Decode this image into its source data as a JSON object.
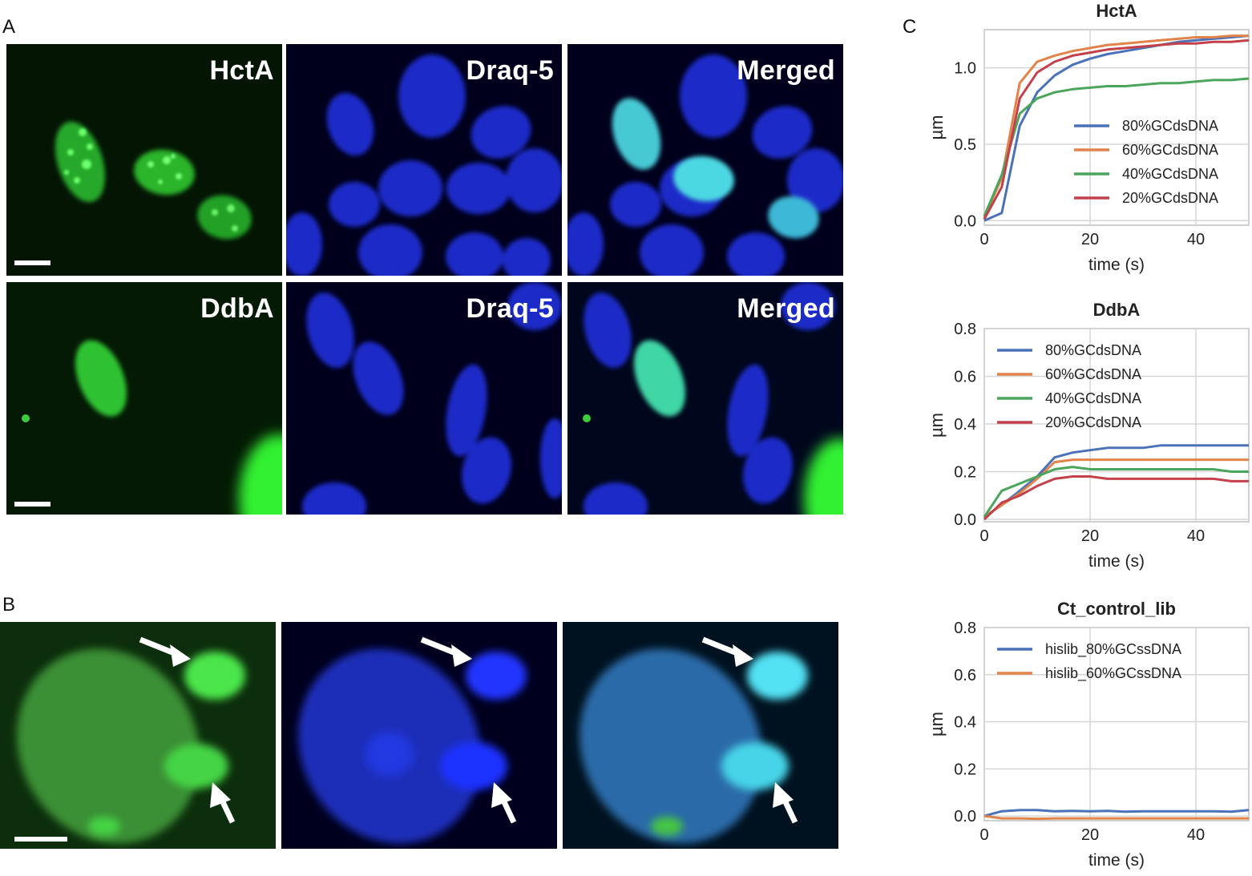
{
  "panels": {
    "A": "A",
    "B": "B",
    "C": "C"
  },
  "microscopy": {
    "row1": [
      "HctA",
      "Draq-5",
      "Merged"
    ],
    "row2": [
      "DdbA",
      "Draq-5",
      "Merged"
    ]
  },
  "colors": {
    "gfp": "#22dd22",
    "draq5": "#1a2cf5",
    "merged": "#4ce6f0",
    "series": [
      "#4a72b8",
      "#e1834a",
      "#4aa65a",
      "#c4414b"
    ]
  },
  "chart_data": [
    {
      "type": "line",
      "title": "HctA",
      "xlabel": "time (s)",
      "ylabel": "µm",
      "xlim": [
        0,
        50
      ],
      "ylim": [
        -0.03,
        1.25
      ],
      "xticks": [
        0,
        20,
        40
      ],
      "yticks": [
        0.0,
        0.5,
        1.0
      ],
      "ytick_labels": [
        "0.0",
        "0.5",
        "1.0"
      ],
      "legend_position": "center-right",
      "series": [
        {
          "name": "80%GCdsDNA",
          "x": [
            0,
            3.3,
            6.7,
            10,
            13.3,
            16.7,
            20,
            23.3,
            26.7,
            30,
            33.3,
            36.7,
            40,
            43.3,
            46.7,
            50
          ],
          "y": [
            0.0,
            0.05,
            0.62,
            0.84,
            0.95,
            1.02,
            1.06,
            1.09,
            1.11,
            1.13,
            1.15,
            1.17,
            1.18,
            1.19,
            1.2,
            1.21
          ]
        },
        {
          "name": "60%GCdsDNA",
          "x": [
            0,
            3.3,
            6.7,
            10,
            13.3,
            16.7,
            20,
            23.3,
            26.7,
            30,
            33.3,
            36.7,
            40,
            43.3,
            46.7,
            50
          ],
          "y": [
            0.02,
            0.28,
            0.9,
            1.04,
            1.08,
            1.11,
            1.13,
            1.15,
            1.16,
            1.17,
            1.18,
            1.19,
            1.2,
            1.2,
            1.21,
            1.21
          ]
        },
        {
          "name": "40%GCdsDNA",
          "x": [
            0,
            3.3,
            6.7,
            10,
            13.3,
            16.7,
            20,
            23.3,
            26.7,
            30,
            33.3,
            36.7,
            40,
            43.3,
            46.7,
            50
          ],
          "y": [
            0.03,
            0.3,
            0.7,
            0.8,
            0.84,
            0.86,
            0.87,
            0.88,
            0.88,
            0.89,
            0.9,
            0.9,
            0.91,
            0.92,
            0.92,
            0.93
          ]
        },
        {
          "name": "20%GCdsDNA",
          "x": [
            0,
            3.3,
            6.7,
            10,
            13.3,
            16.7,
            20,
            23.3,
            26.7,
            30,
            33.3,
            36.7,
            40,
            43.3,
            46.7,
            50
          ],
          "y": [
            0.01,
            0.22,
            0.8,
            0.97,
            1.04,
            1.08,
            1.1,
            1.12,
            1.13,
            1.14,
            1.15,
            1.16,
            1.16,
            1.17,
            1.17,
            1.18
          ]
        }
      ]
    },
    {
      "type": "line",
      "title": "DdbA",
      "xlabel": "time (s)",
      "ylabel": "µm",
      "xlim": [
        0,
        50
      ],
      "ylim": [
        -0.01,
        0.8
      ],
      "xticks": [
        0,
        20,
        40
      ],
      "yticks": [
        0.0,
        0.2,
        0.4,
        0.6,
        0.8
      ],
      "ytick_labels": [
        "0.0",
        "0.2",
        "0.4",
        "0.6",
        "0.8"
      ],
      "legend_position": "upper-left",
      "series": [
        {
          "name": "80%GCdsDNA",
          "x": [
            0,
            3.3,
            6.7,
            10,
            13.3,
            16.7,
            20,
            23.3,
            26.7,
            30,
            33.3,
            36.7,
            40,
            43.3,
            46.7,
            50
          ],
          "y": [
            0.01,
            0.06,
            0.12,
            0.18,
            0.26,
            0.28,
            0.29,
            0.3,
            0.3,
            0.3,
            0.31,
            0.31,
            0.31,
            0.31,
            0.31,
            0.31
          ]
        },
        {
          "name": "60%GCdsDNA",
          "x": [
            0,
            3.3,
            6.7,
            10,
            13.3,
            16.7,
            20,
            23.3,
            26.7,
            30,
            33.3,
            36.7,
            40,
            43.3,
            46.7,
            50
          ],
          "y": [
            0.01,
            0.06,
            0.11,
            0.17,
            0.24,
            0.25,
            0.25,
            0.25,
            0.25,
            0.25,
            0.25,
            0.25,
            0.25,
            0.25,
            0.25,
            0.25
          ]
        },
        {
          "name": "40%GCdsDNA",
          "x": [
            0,
            3.3,
            6.7,
            10,
            13.3,
            16.7,
            20,
            23.3,
            26.7,
            30,
            33.3,
            36.7,
            40,
            43.3,
            46.7,
            50
          ],
          "y": [
            0.01,
            0.12,
            0.15,
            0.18,
            0.21,
            0.22,
            0.21,
            0.21,
            0.21,
            0.21,
            0.21,
            0.21,
            0.21,
            0.21,
            0.2,
            0.2
          ]
        },
        {
          "name": "20%GCdsDNA",
          "x": [
            0,
            3.3,
            6.7,
            10,
            13.3,
            16.7,
            20,
            23.3,
            26.7,
            30,
            33.3,
            36.7,
            40,
            43.3,
            46.7,
            50
          ],
          "y": [
            0.0,
            0.07,
            0.1,
            0.14,
            0.17,
            0.18,
            0.18,
            0.17,
            0.17,
            0.17,
            0.17,
            0.17,
            0.17,
            0.17,
            0.16,
            0.16
          ]
        }
      ]
    },
    {
      "type": "line",
      "title": "Ct_control_lib",
      "xlabel": "time (s)",
      "ylabel": "µm",
      "xlim": [
        0,
        50
      ],
      "ylim": [
        -0.02,
        0.8
      ],
      "xticks": [
        0,
        20,
        40
      ],
      "yticks": [
        0.0,
        0.2,
        0.4,
        0.6,
        0.8
      ],
      "ytick_labels": [
        "0.0",
        "0.2",
        "0.4",
        "0.6",
        "0.8"
      ],
      "legend_position": "upper-left",
      "series": [
        {
          "name": "hislib_80%GCssDNA",
          "x": [
            0,
            3.3,
            6.7,
            10,
            13.3,
            16.7,
            20,
            23.3,
            26.7,
            30,
            33.3,
            36.7,
            40,
            43.3,
            46.7,
            50
          ],
          "y": [
            0.0,
            0.02,
            0.025,
            0.025,
            0.02,
            0.022,
            0.02,
            0.022,
            0.018,
            0.02,
            0.02,
            0.02,
            0.02,
            0.02,
            0.018,
            0.025
          ]
        },
        {
          "name": "hislib_60%GCssDNA",
          "x": [
            0,
            3.3,
            6.7,
            10,
            13.3,
            16.7,
            20,
            23.3,
            26.7,
            30,
            33.3,
            36.7,
            40,
            43.3,
            46.7,
            50
          ],
          "y": [
            0.0,
            -0.01,
            -0.01,
            -0.012,
            -0.01,
            -0.01,
            -0.01,
            -0.01,
            -0.01,
            -0.01,
            -0.01,
            -0.01,
            -0.01,
            -0.01,
            -0.01,
            -0.01
          ]
        }
      ]
    }
  ]
}
